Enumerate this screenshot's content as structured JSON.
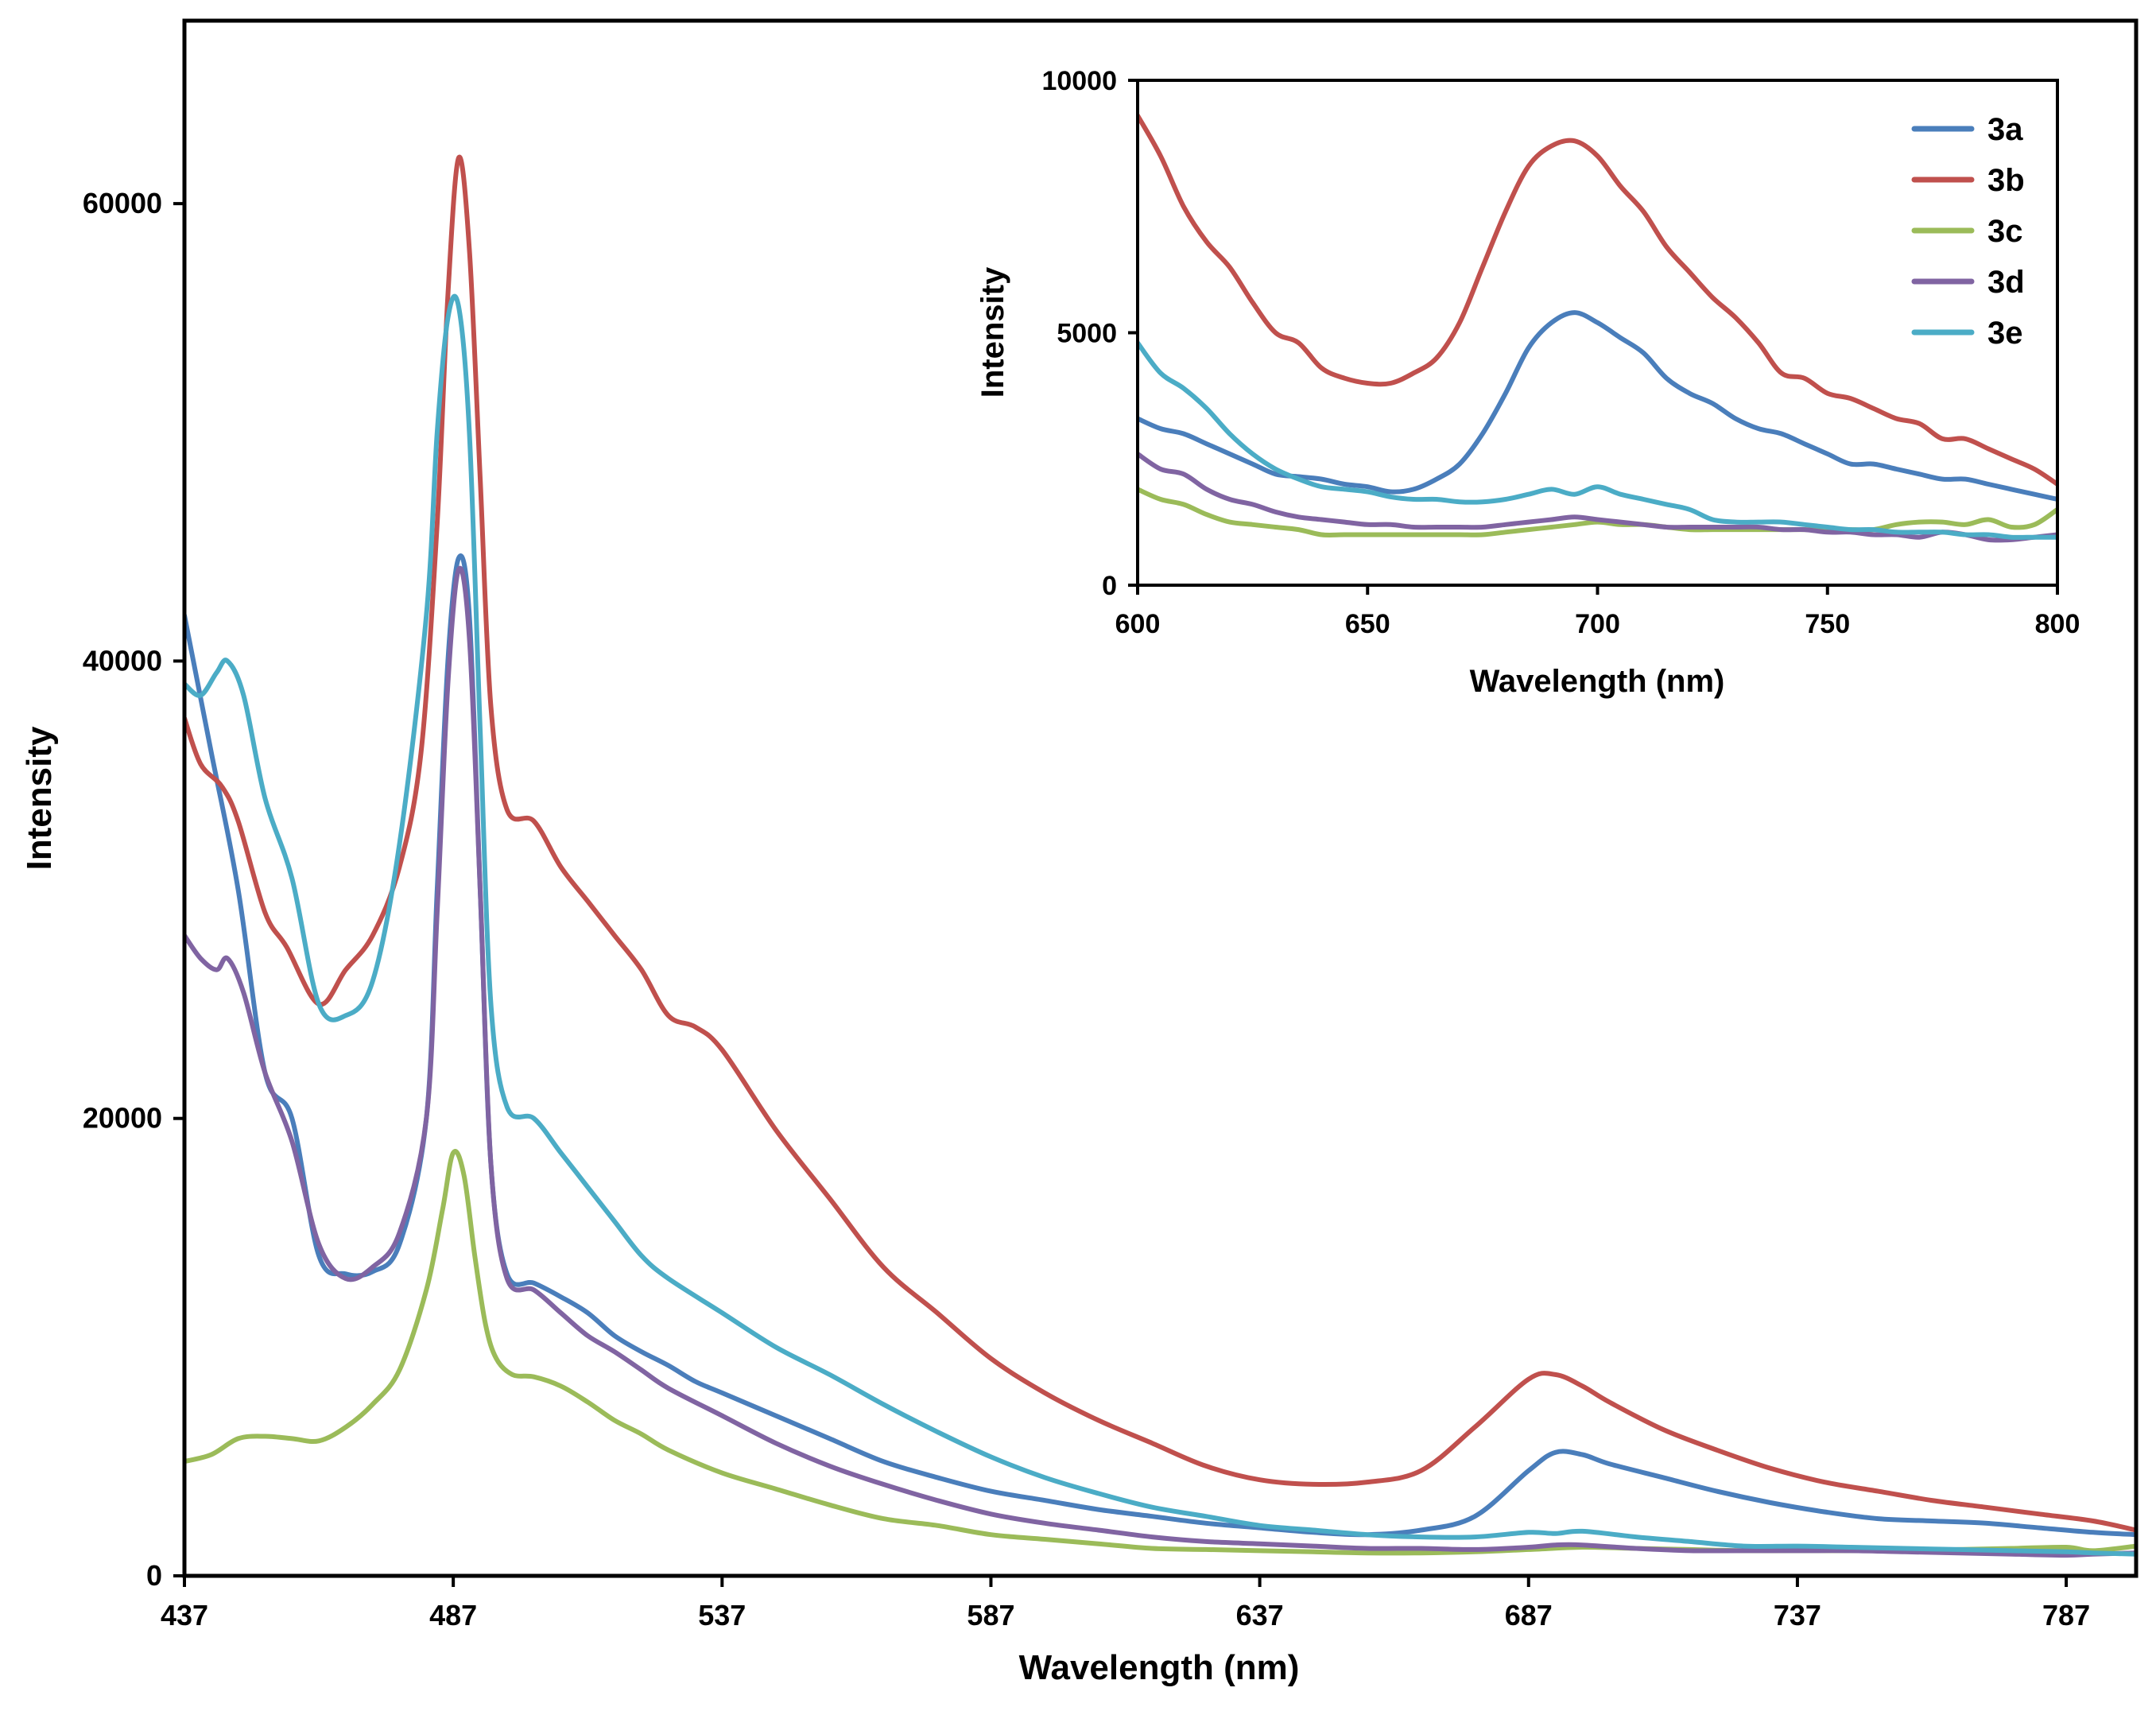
{
  "chart_data": [
    {
      "type": "line",
      "title": "",
      "xlabel": "Wavelength (nm)",
      "ylabel": "Intensity",
      "xlim": [
        437,
        800
      ],
      "ylim": [
        0,
        68000
      ],
      "xticks": [
        437,
        487,
        537,
        587,
        637,
        687,
        737,
        787
      ],
      "yticks": [
        0,
        20000,
        40000,
        60000
      ],
      "grid": false,
      "series": [
        {
          "name": "3a",
          "color": "#4a7ebb",
          "x": [
            437,
            442,
            447,
            452,
            457,
            462,
            467,
            472,
            477,
            482,
            484,
            486,
            488,
            490,
            492,
            494,
            497,
            502,
            507,
            512,
            517,
            522,
            527,
            532,
            537,
            547,
            557,
            567,
            577,
            587,
            597,
            607,
            617,
            627,
            637,
            647,
            657,
            667,
            677,
            687,
            692,
            697,
            702,
            712,
            722,
            732,
            742,
            752,
            762,
            772,
            782,
            792,
            800
          ],
          "y": [
            42000,
            36000,
            30000,
            22000,
            20000,
            14000,
            13200,
            13300,
            14500,
            20000,
            30000,
            40000,
            44500,
            42000,
            30000,
            18000,
            13200,
            12800,
            12200,
            11500,
            10500,
            9800,
            9200,
            8500,
            8000,
            7000,
            6000,
            5000,
            4300,
            3700,
            3300,
            2900,
            2600,
            2300,
            2100,
            1900,
            1800,
            2000,
            2600,
            4600,
            5400,
            5300,
            4900,
            4300,
            3700,
            3200,
            2800,
            2500,
            2400,
            2300,
            2100,
            1900,
            1800
          ]
        },
        {
          "name": "3b",
          "color": "#c0504d",
          "x": [
            437,
            440,
            444,
            447,
            452,
            456,
            462,
            467,
            472,
            477,
            481,
            484,
            486,
            488,
            490,
            492,
            494,
            497,
            502,
            507,
            512,
            517,
            522,
            527,
            532,
            537,
            547,
            557,
            567,
            577,
            587,
            597,
            607,
            617,
            627,
            637,
            647,
            657,
            667,
            677,
            687,
            692,
            697,
            702,
            712,
            722,
            732,
            742,
            752,
            762,
            772,
            782,
            792,
            800
          ],
          "y": [
            37500,
            35500,
            34500,
            33000,
            29000,
            27500,
            25000,
            26500,
            28000,
            31000,
            36000,
            46000,
            56000,
            62000,
            58000,
            48000,
            38000,
            33500,
            33000,
            31000,
            29500,
            28000,
            26500,
            24500,
            24000,
            23000,
            19500,
            16500,
            13500,
            11500,
            9500,
            8000,
            6800,
            5800,
            4800,
            4200,
            4000,
            4100,
            4600,
            6500,
            8600,
            8800,
            8300,
            7600,
            6400,
            5500,
            4700,
            4100,
            3700,
            3300,
            3000,
            2700,
            2400,
            2000
          ]
        },
        {
          "name": "3c",
          "color": "#9bbb59",
          "x": [
            437,
            442,
            447,
            452,
            457,
            462,
            467,
            472,
            477,
            482,
            485,
            487,
            489,
            491,
            493,
            495,
            498,
            502,
            507,
            512,
            517,
            522,
            527,
            537,
            547,
            557,
            567,
            577,
            587,
            597,
            607,
            617,
            627,
            637,
            647,
            657,
            667,
            677,
            687,
            697,
            707,
            717,
            727,
            737,
            747,
            757,
            767,
            777,
            787,
            792,
            800
          ],
          "y": [
            5000,
            5300,
            6000,
            6100,
            6000,
            5900,
            6500,
            7500,
            9000,
            12500,
            16000,
            18500,
            17500,
            14000,
            11000,
            9500,
            8800,
            8700,
            8300,
            7600,
            6800,
            6200,
            5500,
            4500,
            3800,
            3100,
            2500,
            2200,
            1800,
            1600,
            1400,
            1200,
            1150,
            1100,
            1050,
            1000,
            1000,
            1050,
            1150,
            1250,
            1200,
            1150,
            1100,
            1100,
            1100,
            1100,
            1150,
            1200,
            1250,
            1100,
            1300
          ]
        },
        {
          "name": "3d",
          "color": "#8064a2",
          "x": [
            437,
            440,
            443,
            445,
            448,
            452,
            457,
            462,
            467,
            472,
            477,
            482,
            484,
            486,
            488,
            490,
            492,
            494,
            497,
            502,
            507,
            512,
            517,
            522,
            527,
            537,
            547,
            557,
            567,
            577,
            587,
            597,
            607,
            617,
            627,
            637,
            647,
            657,
            667,
            677,
            687,
            692,
            697,
            707,
            717,
            727,
            737,
            747,
            757,
            767,
            777,
            787,
            792,
            800
          ],
          "y": [
            28000,
            27000,
            26500,
            27000,
            25500,
            22000,
            19000,
            14500,
            13000,
            13500,
            15000,
            20000,
            29000,
            39000,
            44000,
            41000,
            30000,
            18000,
            13000,
            12500,
            11500,
            10500,
            9800,
            9000,
            8200,
            7000,
            5800,
            4800,
            4000,
            3300,
            2700,
            2300,
            2000,
            1700,
            1500,
            1400,
            1300,
            1200,
            1200,
            1150,
            1250,
            1350,
            1350,
            1200,
            1100,
            1100,
            1100,
            1100,
            1050,
            1000,
            950,
            900,
            950,
            1000
          ]
        },
        {
          "name": "3e",
          "color": "#4bacc6",
          "x": [
            437,
            440,
            443,
            445,
            448,
            452,
            457,
            462,
            467,
            472,
            477,
            482,
            484,
            486,
            488,
            490,
            492,
            494,
            497,
            502,
            507,
            512,
            517,
            522,
            527,
            537,
            547,
            557,
            567,
            577,
            587,
            597,
            607,
            617,
            627,
            637,
            647,
            657,
            667,
            677,
            687,
            692,
            697,
            707,
            717,
            727,
            737,
            747,
            757,
            767,
            777,
            787,
            792,
            800
          ],
          "y": [
            39000,
            38500,
            39500,
            40000,
            38500,
            34000,
            30500,
            25000,
            24500,
            26000,
            32000,
            42000,
            50000,
            55000,
            55500,
            50000,
            37000,
            25000,
            20500,
            20000,
            18500,
            17000,
            15500,
            14000,
            13000,
            11500,
            10000,
            8800,
            7500,
            6300,
            5200,
            4300,
            3600,
            3000,
            2600,
            2200,
            2000,
            1800,
            1700,
            1700,
            1900,
            1850,
            1950,
            1700,
            1500,
            1300,
            1300,
            1250,
            1200,
            1150,
            1100,
            1050,
            1000,
            950
          ]
        }
      ]
    },
    {
      "type": "line",
      "title": "",
      "xlabel": "Wavelength (nm)",
      "ylabel": "Intensity",
      "xlim": [
        600,
        800
      ],
      "ylim": [
        0,
        10000
      ],
      "xticks": [
        600,
        650,
        700,
        750,
        800
      ],
      "yticks": [
        0,
        5000,
        10000
      ],
      "grid": false,
      "legend": "top-right",
      "series": [
        {
          "name": "3a",
          "color": "#4a7ebb",
          "x": [
            600,
            605,
            610,
            615,
            620,
            625,
            630,
            635,
            640,
            645,
            650,
            655,
            660,
            665,
            670,
            675,
            680,
            685,
            690,
            695,
            700,
            705,
            710,
            715,
            720,
            725,
            730,
            735,
            740,
            745,
            750,
            755,
            760,
            765,
            770,
            775,
            780,
            785,
            790,
            795,
            800
          ],
          "y": [
            3300,
            3100,
            3000,
            2800,
            2600,
            2400,
            2200,
            2150,
            2100,
            2000,
            1950,
            1850,
            1900,
            2100,
            2400,
            3000,
            3800,
            4700,
            5200,
            5400,
            5200,
            4900,
            4600,
            4100,
            3800,
            3600,
            3300,
            3100,
            3000,
            2800,
            2600,
            2400,
            2400,
            2300,
            2200,
            2100,
            2100,
            2000,
            1900,
            1800,
            1700
          ]
        },
        {
          "name": "3b",
          "color": "#c0504d",
          "x": [
            600,
            605,
            610,
            615,
            620,
            625,
            630,
            635,
            640,
            645,
            650,
            655,
            660,
            665,
            670,
            675,
            680,
            685,
            690,
            695,
            700,
            705,
            710,
            715,
            720,
            725,
            730,
            735,
            740,
            745,
            750,
            755,
            760,
            765,
            770,
            775,
            780,
            785,
            790,
            795,
            800
          ],
          "y": [
            9300,
            8500,
            7500,
            6800,
            6300,
            5600,
            5000,
            4800,
            4300,
            4100,
            4000,
            4000,
            4200,
            4500,
            5200,
            6300,
            7400,
            8300,
            8700,
            8800,
            8500,
            7900,
            7400,
            6700,
            6200,
            5700,
            5300,
            4800,
            4200,
            4100,
            3800,
            3700,
            3500,
            3300,
            3200,
            2900,
            2900,
            2700,
            2500,
            2300,
            2000
          ]
        },
        {
          "name": "3c",
          "color": "#9bbb59",
          "x": [
            600,
            605,
            610,
            615,
            620,
            625,
            630,
            635,
            640,
            645,
            650,
            655,
            660,
            665,
            670,
            675,
            680,
            685,
            690,
            695,
            700,
            705,
            710,
            715,
            720,
            725,
            730,
            735,
            740,
            745,
            750,
            755,
            760,
            765,
            770,
            775,
            780,
            785,
            790,
            795,
            800
          ],
          "y": [
            1900,
            1700,
            1600,
            1400,
            1250,
            1200,
            1150,
            1100,
            1000,
            1000,
            1000,
            1000,
            1000,
            1000,
            1000,
            1000,
            1050,
            1100,
            1150,
            1200,
            1250,
            1200,
            1200,
            1150,
            1100,
            1100,
            1100,
            1100,
            1100,
            1100,
            1100,
            1100,
            1100,
            1200,
            1250,
            1250,
            1200,
            1300,
            1150,
            1200,
            1500
          ]
        },
        {
          "name": "3d",
          "color": "#8064a2",
          "x": [
            600,
            605,
            610,
            615,
            620,
            625,
            630,
            635,
            640,
            645,
            650,
            655,
            660,
            665,
            670,
            675,
            680,
            685,
            690,
            695,
            700,
            705,
            710,
            715,
            720,
            725,
            730,
            735,
            740,
            745,
            750,
            755,
            760,
            765,
            770,
            775,
            780,
            785,
            790,
            795,
            800
          ],
          "y": [
            2600,
            2300,
            2200,
            1900,
            1700,
            1600,
            1450,
            1350,
            1300,
            1250,
            1200,
            1200,
            1150,
            1150,
            1150,
            1150,
            1200,
            1250,
            1300,
            1350,
            1300,
            1250,
            1200,
            1150,
            1150,
            1150,
            1150,
            1150,
            1100,
            1100,
            1050,
            1050,
            1000,
            1000,
            950,
            1050,
            1000,
            900,
            900,
            950,
            1000
          ]
        },
        {
          "name": "3e",
          "color": "#4bacc6",
          "x": [
            600,
            605,
            610,
            615,
            620,
            625,
            630,
            635,
            640,
            645,
            650,
            655,
            660,
            665,
            670,
            675,
            680,
            685,
            690,
            695,
            700,
            705,
            710,
            715,
            720,
            725,
            730,
            735,
            740,
            745,
            750,
            755,
            760,
            765,
            770,
            775,
            780,
            785,
            790,
            795,
            800
          ],
          "y": [
            4800,
            4200,
            3900,
            3500,
            3000,
            2600,
            2300,
            2100,
            1950,
            1900,
            1850,
            1750,
            1700,
            1700,
            1650,
            1650,
            1700,
            1800,
            1900,
            1800,
            1950,
            1800,
            1700,
            1600,
            1500,
            1300,
            1250,
            1250,
            1250,
            1200,
            1150,
            1100,
            1100,
            1050,
            1050,
            1050,
            1000,
            1000,
            950,
            950,
            950
          ]
        }
      ]
    }
  ]
}
